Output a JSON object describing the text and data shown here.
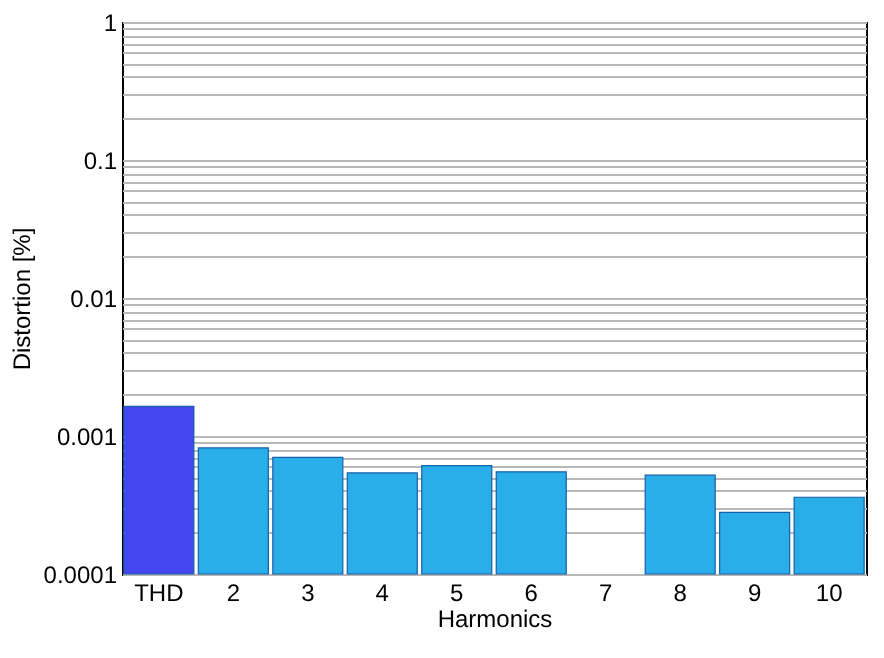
{
  "chart_data": {
    "type": "bar",
    "xlabel": "Harmonics",
    "ylabel": "Distortion [%]",
    "categories": [
      "THD",
      "2",
      "3",
      "4",
      "5",
      "6",
      "7",
      "8",
      "9",
      "10"
    ],
    "values": [
      0.00164,
      0.00082,
      0.0007,
      0.00054,
      0.00061,
      0.00055,
      null,
      0.00052,
      0.00028,
      0.00036
    ],
    "colors": [
      "#4646f0",
      "#29aeea",
      "#29aeea",
      "#29aeea",
      "#29aeea",
      "#29aeea",
      "#29aeea",
      "#29aeea",
      "#29aeea",
      "#29aeea"
    ],
    "log": "y",
    "ylim": [
      0.0001,
      1
    ],
    "yticks": [
      0.0001,
      {
        "value": 0.0002,
        "label": null
      },
      {
        "value": 0.0003,
        "label": null
      },
      {
        "value": 0.0004,
        "label": null
      },
      {
        "value": 0.0005,
        "label": null
      },
      {
        "value": 0.0006,
        "label": null
      },
      {
        "value": 0.0007,
        "label": null
      },
      {
        "value": 0.0008,
        "label": null
      },
      {
        "value": 0.0009,
        "label": null
      },
      0.001,
      {
        "value": 0.002,
        "label": null
      },
      {
        "value": 0.003,
        "label": null
      },
      {
        "value": 0.004,
        "label": null
      },
      {
        "value": 0.005,
        "label": null
      },
      {
        "value": 0.006,
        "label": null
      },
      {
        "value": 0.007,
        "label": null
      },
      {
        "value": 0.008,
        "label": null
      },
      {
        "value": 0.009,
        "label": null
      },
      0.01,
      {
        "value": 0.02,
        "label": null
      },
      {
        "value": 0.03,
        "label": null
      },
      {
        "value": 0.04,
        "label": null
      },
      {
        "value": 0.05,
        "label": null
      },
      {
        "value": 0.06,
        "label": null
      },
      {
        "value": 0.07,
        "label": null
      },
      {
        "value": 0.08,
        "label": null
      },
      {
        "value": 0.09,
        "label": null
      },
      0.1,
      {
        "value": 0.2,
        "label": null
      },
      {
        "value": 0.3,
        "label": null
      },
      {
        "value": 0.4,
        "label": null
      },
      {
        "value": 0.5,
        "label": null
      },
      {
        "value": 0.6,
        "label": null
      },
      {
        "value": 0.7,
        "label": null
      },
      {
        "value": 0.8,
        "label": null
      },
      {
        "value": 0.9,
        "label": null
      },
      1
    ],
    "grid": "y"
  }
}
